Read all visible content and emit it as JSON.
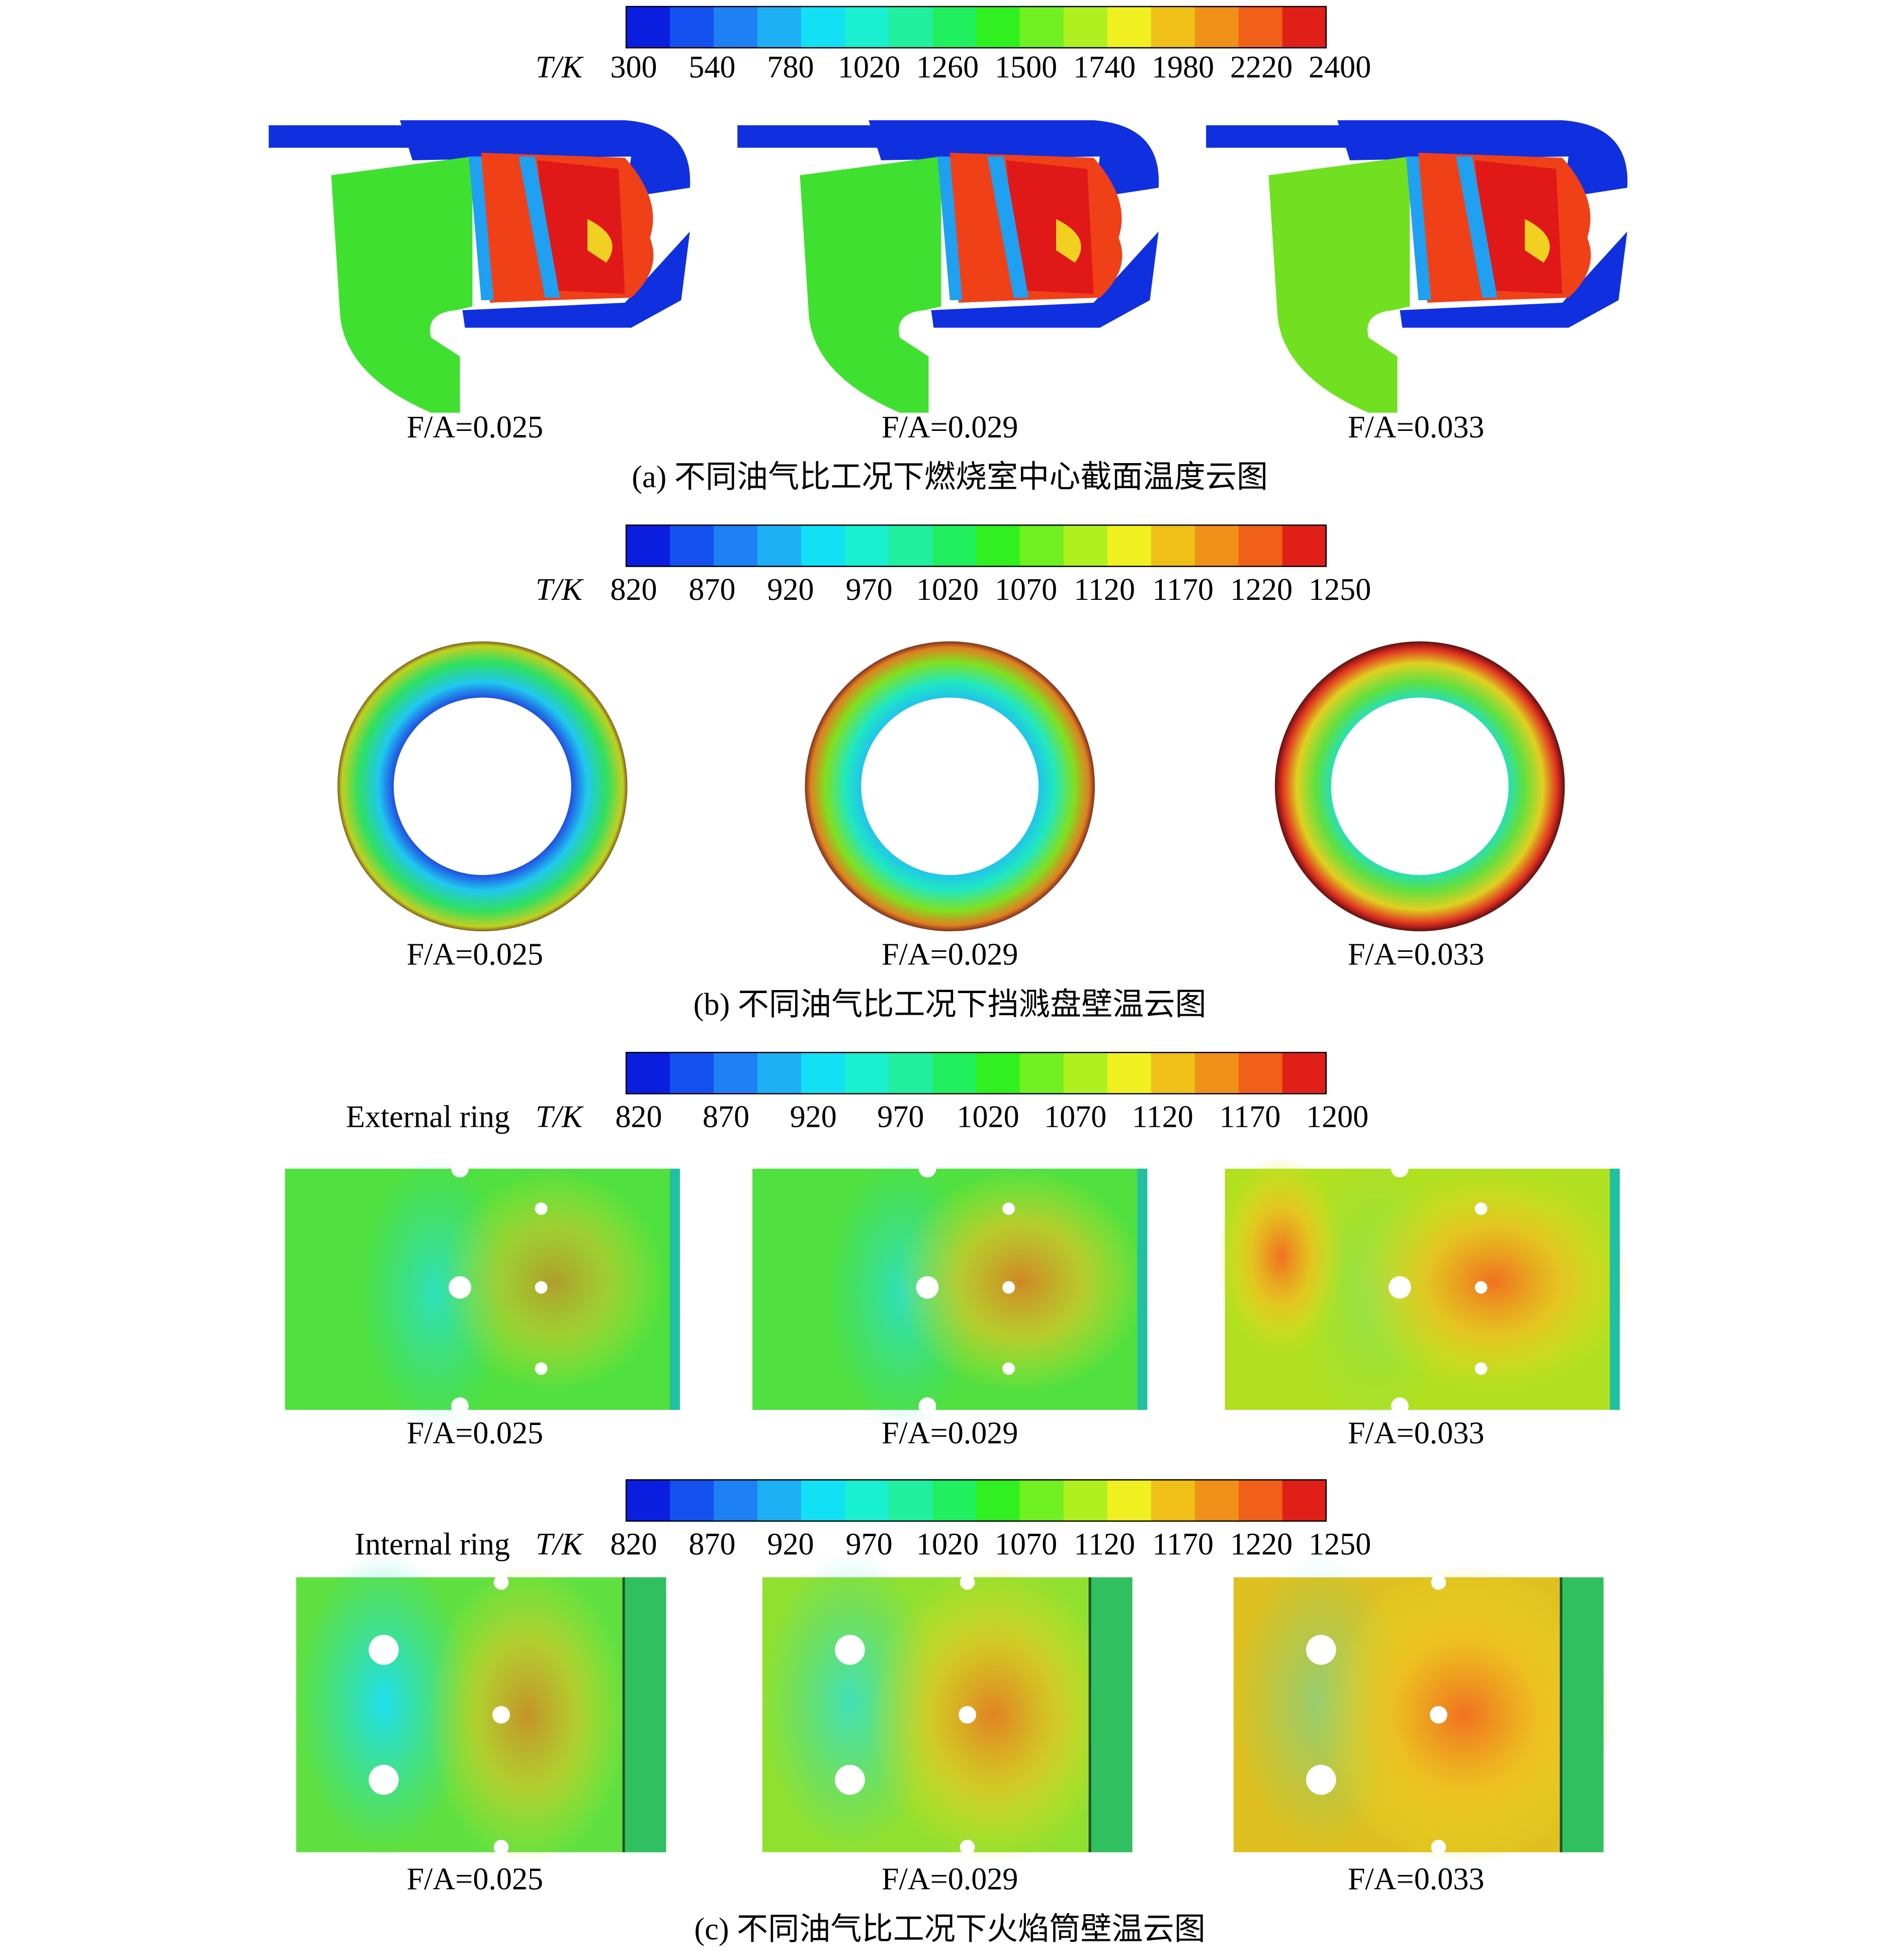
{
  "colorbars": [
    {
      "label": "T/K",
      "ticks": [
        300,
        540,
        780,
        1020,
        1260,
        1500,
        1740,
        1980,
        2220,
        2400
      ]
    },
    {
      "label": "T/K",
      "ticks": [
        820,
        870,
        920,
        970,
        1020,
        1070,
        1120,
        1170,
        1220,
        1250
      ]
    },
    {
      "ring": "External ring",
      "label": "T/K",
      "ticks": [
        820,
        870,
        920,
        970,
        1020,
        1070,
        1120,
        1170,
        1200
      ]
    },
    {
      "ring": "Internal ring",
      "label": "T/K",
      "ticks": [
        820,
        870,
        920,
        970,
        1020,
        1070,
        1120,
        1170,
        1220,
        1250
      ]
    }
  ],
  "rows": [
    [
      "F/A=0.025",
      "F/A=0.029",
      "F/A=0.033"
    ],
    [
      "F/A=0.025",
      "F/A=0.029",
      "F/A=0.033"
    ],
    [
      "F/A=0.025",
      "F/A=0.029",
      "F/A=0.033"
    ],
    [
      "F/A=0.025",
      "F/A=0.029",
      "F/A=0.033"
    ]
  ],
  "captions": [
    "(a) 不同油气比工况下燃烧室中心截面温度云图",
    "(b) 不同油气比工况下挡溅盘壁温云图",
    "(c) 不同油气比工况下火焰筒壁温云图"
  ]
}
